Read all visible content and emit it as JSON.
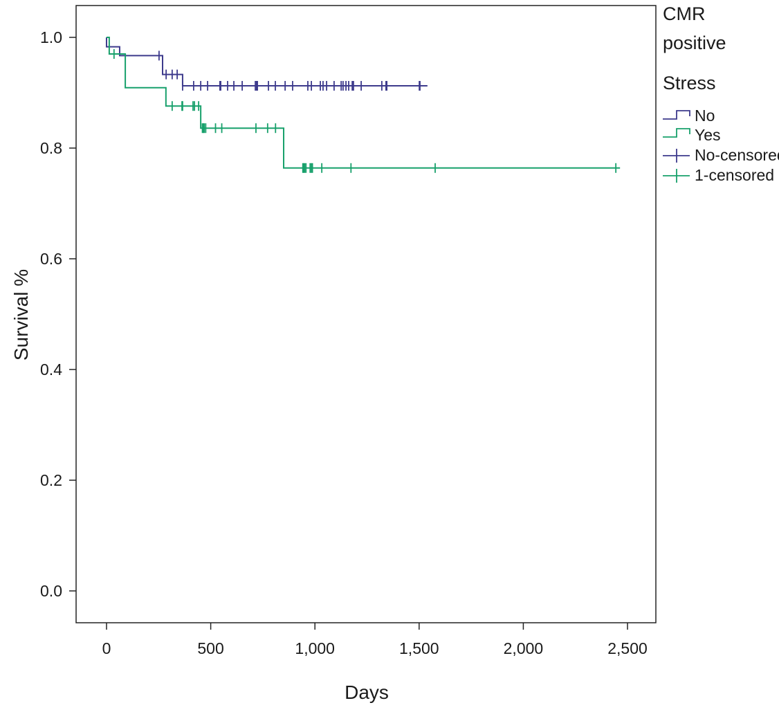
{
  "chart_data": {
    "type": "line",
    "subtype": "kaplan-meier",
    "xlabel": "Days",
    "ylabel": "Survival %",
    "xlim": [
      -146,
      2636
    ],
    "ylim": [
      -0.0575,
      1.0575
    ],
    "xticks": [
      0,
      500,
      1000,
      1500,
      2000,
      2500
    ],
    "xtick_labels": [
      "0",
      "500",
      "1,000",
      "1,500",
      "2,000",
      "2,500"
    ],
    "yticks": [
      0.0,
      0.2,
      0.4,
      0.6,
      0.8,
      1.0
    ],
    "ytick_labels": [
      "0.0",
      "0.2",
      "0.4",
      "0.6",
      "0.8",
      "1.0"
    ],
    "grid": false,
    "legend": {
      "placement": "right",
      "title_line1": "CMR",
      "title_line2": "positive",
      "subtitle": "Stress",
      "entries": [
        "No",
        "Yes",
        "No-censored",
        "1-censored"
      ]
    },
    "series": [
      {
        "name": "No",
        "color": "#3d3a8c",
        "steps": [
          [
            0,
            1.0
          ],
          [
            0,
            0.983
          ],
          [
            63,
            0.967
          ],
          [
            269,
            0.933
          ],
          [
            365,
            0.9125
          ]
        ],
        "end": 1540,
        "censored": [
          252,
          286,
          315,
          339,
          365,
          418,
          452,
          485,
          544,
          548,
          581,
          611,
          651,
          714,
          720,
          724,
          777,
          810,
          857,
          893,
          966,
          983,
          1026,
          1039,
          1056,
          1092,
          1126,
          1135,
          1149,
          1162,
          1179,
          1185,
          1222,
          1321,
          1341,
          1345,
          1501,
          1504
        ]
      },
      {
        "name": "Yes",
        "color": "#17a06b",
        "steps": [
          [
            0,
            1.0
          ],
          [
            13,
            0.97
          ],
          [
            90,
            0.909
          ],
          [
            285,
            0.876
          ],
          [
            452,
            0.836
          ],
          [
            850,
            0.764
          ]
        ],
        "end": 2464,
        "censored": [
          36,
          315,
          362,
          365,
          415,
          422,
          442,
          460,
          465,
          469,
          476,
          523,
          553,
          717,
          773,
          811,
          942,
          946,
          951,
          957,
          977,
          983,
          988,
          1033,
          1173,
          1577,
          2444
        ]
      }
    ]
  }
}
